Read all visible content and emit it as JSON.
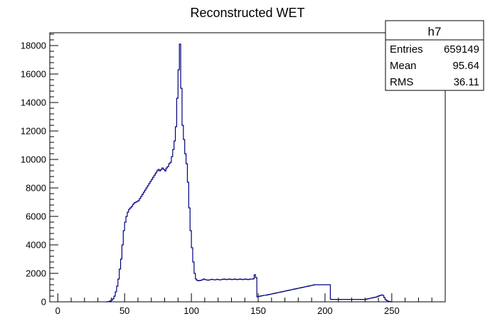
{
  "chart_data": {
    "type": "histogram",
    "title": "Reconstructed WET",
    "xlabel": "",
    "ylabel": "",
    "xlim": [
      -6,
      290
    ],
    "ylim": [
      0,
      18900
    ],
    "x_ticks": [
      0,
      50,
      100,
      150,
      200,
      250
    ],
    "y_ticks": [
      0,
      2000,
      4000,
      6000,
      8000,
      10000,
      12000,
      14000,
      16000,
      18000
    ],
    "line_color": "#000080",
    "grid": false,
    "stats_box": {
      "name": "h7",
      "rows": [
        {
          "label": "Entries",
          "value": "659149"
        },
        {
          "label": "Mean",
          "value": "95.64"
        },
        {
          "label": "RMS",
          "value": "36.11"
        }
      ]
    },
    "series": [
      {
        "bin_width": 1,
        "bins": [
          [
            36,
            0
          ],
          [
            37,
            10
          ],
          [
            38,
            30
          ],
          [
            39,
            60
          ],
          [
            40,
            120
          ],
          [
            41,
            220
          ],
          [
            42,
            400
          ],
          [
            43,
            700
          ],
          [
            44,
            1100
          ],
          [
            45,
            1600
          ],
          [
            46,
            2300
          ],
          [
            47,
            3000
          ],
          [
            48,
            4000
          ],
          [
            49,
            5000
          ],
          [
            50,
            5600
          ],
          [
            51,
            6000
          ],
          [
            52,
            6300
          ],
          [
            53,
            6500
          ],
          [
            54,
            6600
          ],
          [
            55,
            6700
          ],
          [
            56,
            6850
          ],
          [
            57,
            6950
          ],
          [
            58,
            7000
          ],
          [
            59,
            7050
          ],
          [
            60,
            7100
          ],
          [
            61,
            7250
          ],
          [
            62,
            7400
          ],
          [
            63,
            7550
          ],
          [
            64,
            7700
          ],
          [
            65,
            7850
          ],
          [
            66,
            8000
          ],
          [
            67,
            8150
          ],
          [
            68,
            8300
          ],
          [
            69,
            8450
          ],
          [
            70,
            8600
          ],
          [
            71,
            8750
          ],
          [
            72,
            8900
          ],
          [
            73,
            9050
          ],
          [
            74,
            9200
          ],
          [
            75,
            9300
          ],
          [
            76,
            9200
          ],
          [
            77,
            9300
          ],
          [
            78,
            9400
          ],
          [
            79,
            9300
          ],
          [
            80,
            9200
          ],
          [
            81,
            9400
          ],
          [
            82,
            9500
          ],
          [
            83,
            9700
          ],
          [
            84,
            9800
          ],
          [
            85,
            10200
          ],
          [
            86,
            10700
          ],
          [
            87,
            11300
          ],
          [
            88,
            12300
          ],
          [
            89,
            14300
          ],
          [
            90,
            16300
          ],
          [
            91,
            18100
          ],
          [
            92,
            15000
          ],
          [
            93,
            12400
          ],
          [
            94,
            11400
          ],
          [
            95,
            10400
          ],
          [
            96,
            9700
          ],
          [
            97,
            8400
          ],
          [
            98,
            6600
          ],
          [
            99,
            5000
          ],
          [
            100,
            3800
          ],
          [
            101,
            2800
          ],
          [
            102,
            2000
          ],
          [
            103,
            1600
          ],
          [
            104,
            1500
          ],
          [
            105,
            1480
          ],
          [
            106,
            1500
          ],
          [
            107,
            1520
          ],
          [
            108,
            1560
          ],
          [
            109,
            1600
          ],
          [
            110,
            1560
          ],
          [
            111,
            1540
          ],
          [
            112,
            1520
          ],
          [
            113,
            1540
          ],
          [
            114,
            1560
          ],
          [
            115,
            1580
          ],
          [
            116,
            1560
          ],
          [
            117,
            1540
          ],
          [
            118,
            1560
          ],
          [
            119,
            1580
          ],
          [
            120,
            1560
          ],
          [
            121,
            1540
          ],
          [
            122,
            1560
          ],
          [
            123,
            1580
          ],
          [
            124,
            1600
          ],
          [
            125,
            1580
          ],
          [
            126,
            1560
          ],
          [
            127,
            1580
          ],
          [
            128,
            1600
          ],
          [
            129,
            1580
          ],
          [
            130,
            1560
          ],
          [
            131,
            1580
          ],
          [
            132,
            1600
          ],
          [
            133,
            1580
          ],
          [
            134,
            1560
          ],
          [
            135,
            1580
          ],
          [
            136,
            1600
          ],
          [
            137,
            1580
          ],
          [
            138,
            1560
          ],
          [
            139,
            1580
          ],
          [
            140,
            1600
          ],
          [
            141,
            1580
          ],
          [
            142,
            1560
          ],
          [
            143,
            1580
          ],
          [
            144,
            1600
          ],
          [
            145,
            1600
          ],
          [
            146,
            1620
          ],
          [
            147,
            1900
          ],
          [
            148,
            1700
          ],
          [
            149,
            350
          ],
          [
            150,
            380
          ],
          [
            151,
            400
          ],
          [
            152,
            420
          ],
          [
            153,
            440
          ],
          [
            154,
            460
          ],
          [
            155,
            460
          ],
          [
            156,
            480
          ],
          [
            157,
            500
          ],
          [
            158,
            520
          ],
          [
            159,
            540
          ],
          [
            160,
            560
          ],
          [
            161,
            580
          ],
          [
            162,
            600
          ],
          [
            163,
            620
          ],
          [
            164,
            640
          ],
          [
            165,
            660
          ],
          [
            166,
            680
          ],
          [
            167,
            700
          ],
          [
            168,
            720
          ],
          [
            169,
            740
          ],
          [
            170,
            760
          ],
          [
            171,
            780
          ],
          [
            172,
            800
          ],
          [
            173,
            820
          ],
          [
            174,
            840
          ],
          [
            175,
            860
          ],
          [
            176,
            880
          ],
          [
            177,
            900
          ],
          [
            178,
            920
          ],
          [
            179,
            940
          ],
          [
            180,
            960
          ],
          [
            181,
            980
          ],
          [
            182,
            1000
          ],
          [
            183,
            1020
          ],
          [
            184,
            1040
          ],
          [
            185,
            1060
          ],
          [
            186,
            1080
          ],
          [
            187,
            1100
          ],
          [
            188,
            1120
          ],
          [
            189,
            1140
          ],
          [
            190,
            1160
          ],
          [
            191,
            1180
          ],
          [
            192,
            1200
          ],
          [
            193,
            1200
          ],
          [
            194,
            1200
          ],
          [
            195,
            1200
          ],
          [
            196,
            1200
          ],
          [
            197,
            1200
          ],
          [
            198,
            1200
          ],
          [
            199,
            1200
          ],
          [
            200,
            1200
          ],
          [
            201,
            1200
          ],
          [
            202,
            1200
          ],
          [
            203,
            1200
          ],
          [
            204,
            180
          ],
          [
            205,
            170
          ],
          [
            206,
            170
          ],
          [
            207,
            170
          ],
          [
            208,
            170
          ],
          [
            209,
            170
          ],
          [
            210,
            170
          ],
          [
            211,
            170
          ],
          [
            212,
            170
          ],
          [
            213,
            170
          ],
          [
            214,
            170
          ],
          [
            215,
            170
          ],
          [
            216,
            170
          ],
          [
            217,
            170
          ],
          [
            218,
            170
          ],
          [
            219,
            170
          ],
          [
            220,
            170
          ],
          [
            221,
            170
          ],
          [
            222,
            170
          ],
          [
            223,
            170
          ],
          [
            224,
            170
          ],
          [
            225,
            170
          ],
          [
            226,
            170
          ],
          [
            227,
            170
          ],
          [
            228,
            170
          ],
          [
            229,
            170
          ],
          [
            230,
            170
          ],
          [
            231,
            200
          ],
          [
            232,
            220
          ],
          [
            233,
            240
          ],
          [
            234,
            260
          ],
          [
            235,
            280
          ],
          [
            236,
            300
          ],
          [
            237,
            320
          ],
          [
            238,
            340
          ],
          [
            239,
            380
          ],
          [
            240,
            420
          ],
          [
            241,
            450
          ],
          [
            242,
            480
          ],
          [
            243,
            460
          ],
          [
            244,
            300
          ],
          [
            245,
            150
          ],
          [
            246,
            80
          ],
          [
            247,
            40
          ],
          [
            248,
            20
          ],
          [
            249,
            0
          ]
        ]
      }
    ]
  }
}
